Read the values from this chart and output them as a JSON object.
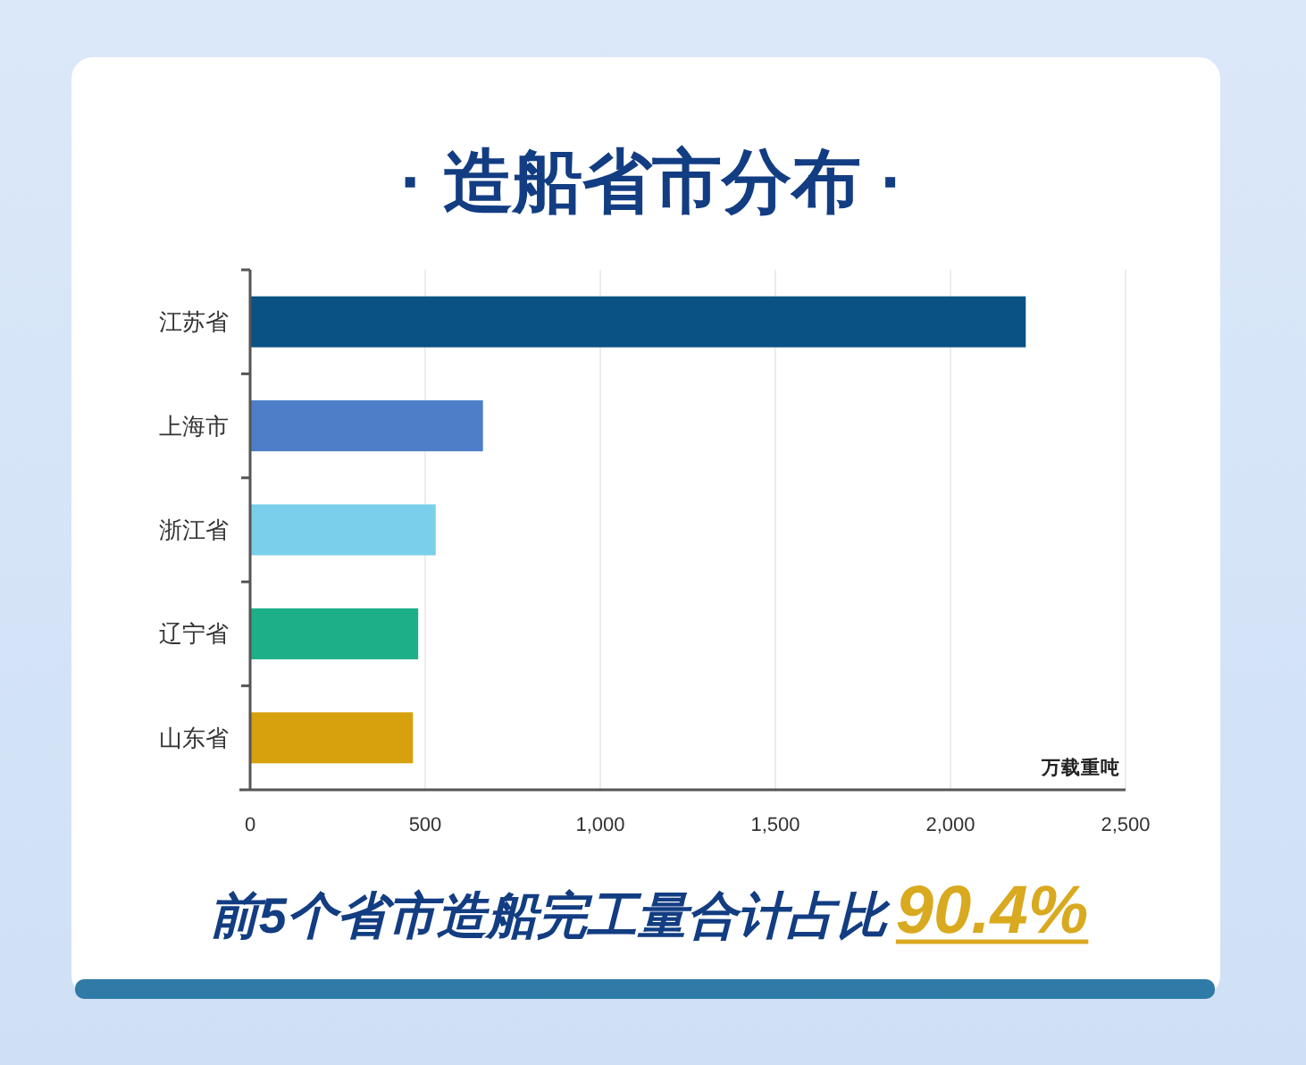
{
  "chart_data": {
    "type": "bar",
    "orientation": "horizontal",
    "title": "· 造船省市分布 ·",
    "xlabel": "万载重吨",
    "categories": [
      "江苏省",
      "上海市",
      "浙江省",
      "辽宁省",
      "山东省"
    ],
    "values": [
      2215,
      665,
      530,
      480,
      465
    ],
    "colors": [
      "#0a5283",
      "#4e7ec8",
      "#7ad0eb",
      "#1db088",
      "#d6a10c"
    ],
    "xlim": [
      0,
      2500
    ],
    "xticks": [
      0,
      500,
      {
        "value": 1000,
        "label": "1,000"
      },
      {
        "value": 1500,
        "label": "1,500"
      },
      {
        "value": 2000,
        "label": "2,000"
      },
      {
        "value": 2500,
        "label": "2,500"
      }
    ],
    "grid": "x",
    "annotations": [
      "前5个省市造船完工量合计占比",
      "90.4%"
    ]
  }
}
